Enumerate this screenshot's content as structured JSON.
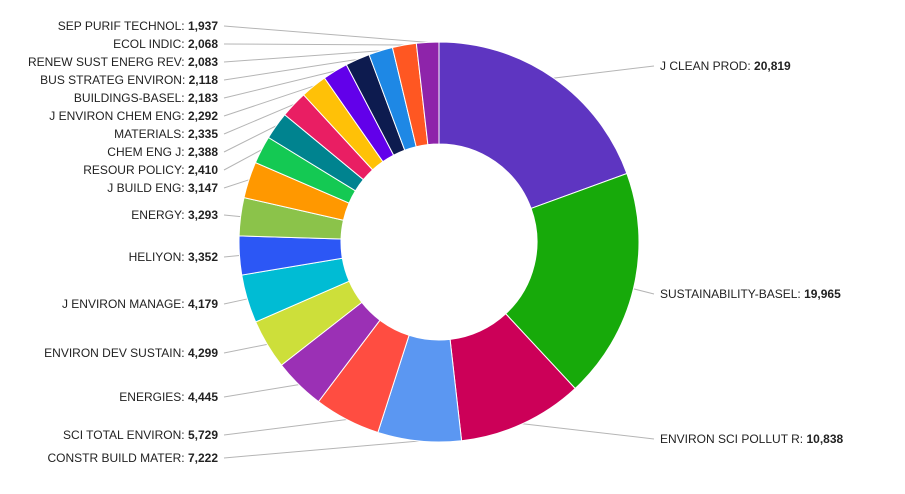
{
  "chart_data": {
    "type": "pie",
    "style": "donut",
    "title": "",
    "slices": [
      {
        "label": "J CLEAN PROD",
        "value": 20819,
        "display": "20,819",
        "color": "#5e35c1"
      },
      {
        "label": "SUSTAINABILITY-BASEL",
        "value": 19965,
        "display": "19,965",
        "color": "#17aa0a"
      },
      {
        "label": "ENVIRON SCI POLLUT R",
        "value": 10838,
        "display": "10,838",
        "color": "#cc0058"
      },
      {
        "label": "CONSTR BUILD MATER",
        "value": 7222,
        "display": "7,222",
        "color": "#5b97f2"
      },
      {
        "label": "SCI TOTAL ENVIRON",
        "value": 5729,
        "display": "5,729",
        "color": "#ff4d41"
      },
      {
        "label": "ENERGIES",
        "value": 4445,
        "display": "4,445",
        "color": "#9b30b5"
      },
      {
        "label": "ENVIRON DEV SUSTAIN",
        "value": 4299,
        "display": "4,299",
        "color": "#cddf3a"
      },
      {
        "label": "J ENVIRON MANAGE",
        "value": 4179,
        "display": "4,179",
        "color": "#00bcd4"
      },
      {
        "label": "HELIYON",
        "value": 3352,
        "display": "3,352",
        "color": "#2c57f5"
      },
      {
        "label": "ENERGY",
        "value": 3293,
        "display": "3,293",
        "color": "#8bc34a"
      },
      {
        "label": "J BUILD ENG",
        "value": 3147,
        "display": "3,147",
        "color": "#ff9800"
      },
      {
        "label": "RESOUR POLICY",
        "value": 2410,
        "display": "2,410",
        "color": "#14c953"
      },
      {
        "label": "CHEM ENG J",
        "value": 2388,
        "display": "2,388",
        "color": "#00838f"
      },
      {
        "label": "MATERIALS",
        "value": 2335,
        "display": "2,335",
        "color": "#e91e63"
      },
      {
        "label": "J ENVIRON CHEM ENG",
        "value": 2292,
        "display": "2,292",
        "color": "#ffc107"
      },
      {
        "label": "BUILDINGS-BASEL",
        "value": 2183,
        "display": "2,183",
        "color": "#6200ea"
      },
      {
        "label": "BUS STRATEG ENVIRON",
        "value": 2118,
        "display": "2,118",
        "color": "#0d1b4f"
      },
      {
        "label": "RENEW SUST ENERG REV",
        "value": 2083,
        "display": "2,083",
        "color": "#1e88e5"
      },
      {
        "label": "ECOL INDIC",
        "value": 2068,
        "display": "2,068",
        "color": "#ff5722"
      },
      {
        "label": "SEP PURIF TECHNOL",
        "value": 1937,
        "display": "1,937",
        "color": "#8e24aa"
      }
    ]
  }
}
